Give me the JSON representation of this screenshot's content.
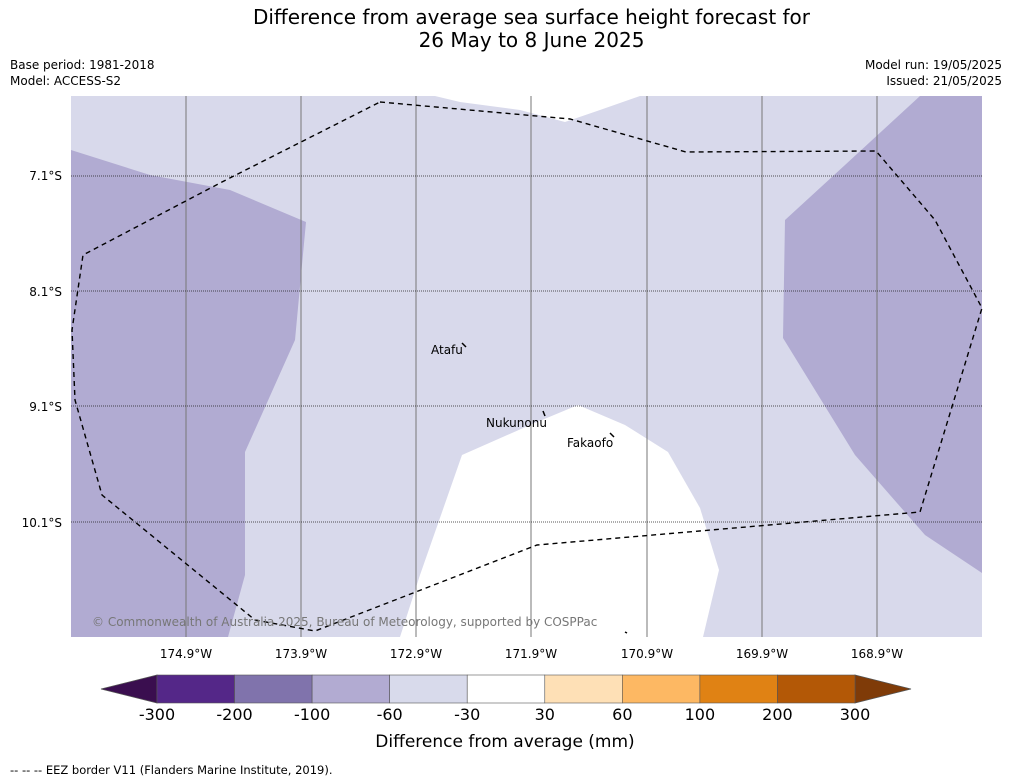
{
  "title": {
    "line1": "Difference from average sea surface height forecast for",
    "line2": "26 May to 8 June 2025"
  },
  "meta": {
    "base_period": "Base period: 1981-2018",
    "model": "Model: ACCESS-S2",
    "model_run": "Model run: 19/05/2025",
    "issued": "Issued: 21/05/2025"
  },
  "axes": {
    "lat_ticks": [
      "7.1°S",
      "8.1°S",
      "9.1°S",
      "10.1°S"
    ],
    "lon_ticks": [
      "174.9°W",
      "173.9°W",
      "172.9°W",
      "171.9°W",
      "170.9°W",
      "169.9°W",
      "168.9°W"
    ]
  },
  "places": [
    {
      "name": "Atafu"
    },
    {
      "name": "Nukunonu"
    },
    {
      "name": "Fakaofo"
    }
  ],
  "copyright": "© Commonwealth of Australia 2025, Bureau of Meteorology, supported by COSPPac",
  "colorbar": {
    "label": "Difference from average (mm)",
    "tick_labels": [
      "-300",
      "-200",
      "-100",
      "-60",
      "-30",
      "30",
      "60",
      "100",
      "200",
      "300"
    ],
    "colors": {
      "below_min": "#3a0e4f",
      "bins": [
        "#542788",
        "#8073ac",
        "#b2abd2",
        "#d8daeb",
        "#ffffff",
        "#fee0b6",
        "#fdb863",
        "#e08214",
        "#b35806"
      ],
      "above_max": "#7f3b08"
    }
  },
  "footnote": "--  --  -- EEZ border V11 (Flanders Marine Institute, 2019)."
}
